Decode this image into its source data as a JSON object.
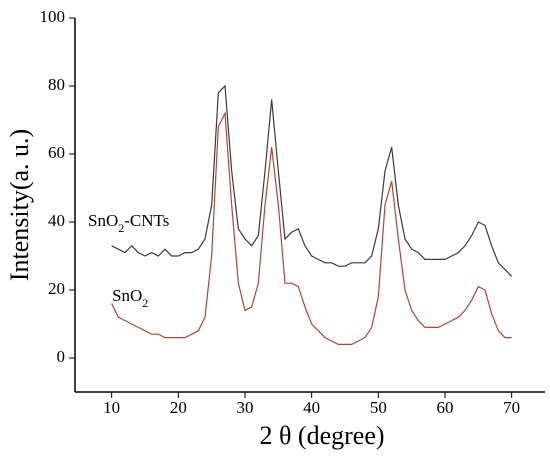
{
  "chart_data": {
    "type": "line",
    "x_label": "2 θ (degree)",
    "y_label": "Intensity(a. u.)",
    "x": [
      10,
      11,
      12,
      13,
      14,
      15,
      16,
      17,
      18,
      19,
      20,
      21,
      22,
      23,
      24,
      25,
      26,
      27,
      28,
      29,
      30,
      31,
      32,
      33,
      34,
      35,
      36,
      37,
      38,
      39,
      40,
      41,
      42,
      43,
      44,
      45,
      46,
      47,
      48,
      49,
      50,
      51,
      52,
      53,
      54,
      55,
      56,
      57,
      58,
      59,
      60,
      61,
      62,
      63,
      64,
      65,
      66,
      67,
      68,
      69,
      70
    ],
    "series": [
      {
        "name": "SnO2-CNTs",
        "color": "#3a3a3a",
        "values": [
          33,
          32,
          31,
          33,
          31,
          30,
          31,
          30,
          32,
          30,
          30,
          31,
          31,
          32,
          35,
          45,
          78,
          80,
          55,
          38,
          35,
          33,
          36,
          55,
          76,
          55,
          35,
          37,
          38,
          33,
          30,
          29,
          28,
          28,
          27,
          27,
          28,
          28,
          28,
          30,
          38,
          55,
          62,
          45,
          35,
          32,
          31,
          29,
          29,
          29,
          29,
          30,
          31,
          33,
          36,
          40,
          39,
          33,
          28,
          26,
          24
        ]
      },
      {
        "name": "SnO2",
        "color": "#b5452f",
        "values": [
          16,
          12,
          11,
          10,
          9,
          8,
          7,
          7,
          6,
          6,
          6,
          6,
          7,
          8,
          12,
          30,
          68,
          72,
          45,
          22,
          14,
          15,
          22,
          45,
          62,
          45,
          22,
          22,
          21,
          15,
          10,
          8,
          6,
          5,
          4,
          4,
          4,
          5,
          6,
          9,
          18,
          45,
          52,
          35,
          20,
          14,
          11,
          9,
          9,
          9,
          10,
          11,
          12,
          14,
          17,
          21,
          20,
          13,
          8,
          6,
          6
        ]
      }
    ],
    "xlim": [
      4.5,
      75
    ],
    "xticks": [
      10,
      20,
      30,
      40,
      50,
      60,
      70
    ],
    "ylim": [
      -10,
      100
    ],
    "yticks": [
      0,
      20,
      40,
      60,
      80,
      100
    ]
  }
}
